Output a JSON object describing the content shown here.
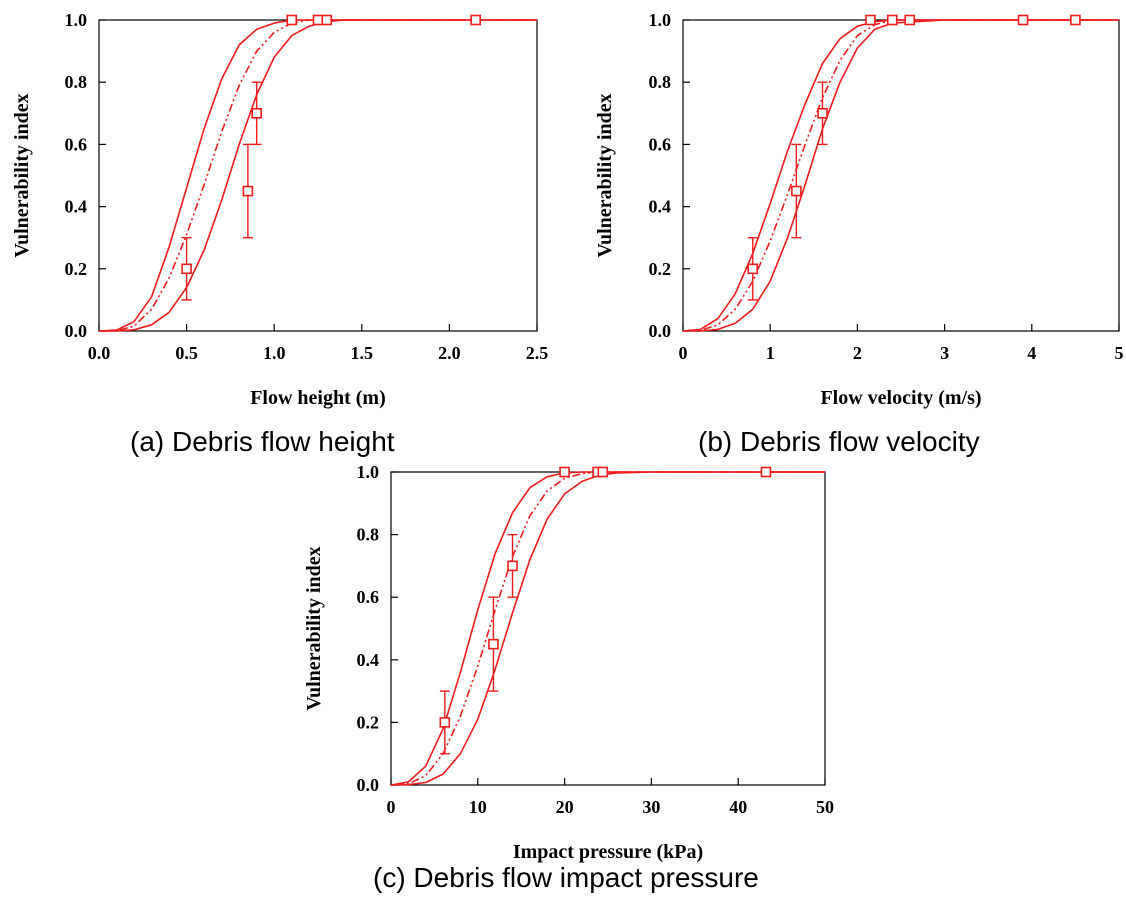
{
  "colors": {
    "curve": "#ee1c1c",
    "axis": "#000000",
    "text": "#000000"
  },
  "chart_data": [
    {
      "type": "scatter",
      "panel": "a",
      "caption": "(a) Debris flow height",
      "xlabel": "Flow height (m)",
      "ylabel": "Vulnerability index",
      "xlim": [
        0,
        2.5
      ],
      "ylim": [
        0,
        1.0
      ],
      "xticks": [
        0.0,
        0.5,
        1.0,
        1.5,
        2.0,
        2.5
      ],
      "xtick_labels": [
        "0.0",
        "0.5",
        "1.0",
        "1.5",
        "2.0",
        "2.5"
      ],
      "yticks": [
        0.0,
        0.2,
        0.4,
        0.6,
        0.8,
        1.0
      ],
      "ytick_labels": [
        "0.0",
        "0.2",
        "0.4",
        "0.6",
        "0.8",
        "1.0"
      ],
      "grid": false,
      "points": [
        {
          "x": 0.5,
          "y": 0.2,
          "err_low": 0.1,
          "err_high": 0.3
        },
        {
          "x": 0.85,
          "y": 0.45,
          "err_low": 0.3,
          "err_high": 0.6
        },
        {
          "x": 0.9,
          "y": 0.7,
          "err_low": 0.6,
          "err_high": 0.8
        },
        {
          "x": 1.1,
          "y": 1.0
        },
        {
          "x": 1.25,
          "y": 1.0
        },
        {
          "x": 1.3,
          "y": 1.0
        },
        {
          "x": 2.15,
          "y": 1.0
        }
      ],
      "curves": [
        {
          "style": "solid",
          "x": [
            0,
            0.1,
            0.2,
            0.3,
            0.4,
            0.5,
            0.6,
            0.7,
            0.8,
            0.9,
            1.0,
            1.1,
            1.2,
            1.3,
            1.4,
            1.5,
            2.5
          ],
          "y": [
            0,
            0.003,
            0.03,
            0.11,
            0.27,
            0.46,
            0.65,
            0.81,
            0.92,
            0.97,
            0.99,
            1.0,
            1.0,
            1.0,
            1.0,
            1.0,
            1.0
          ]
        },
        {
          "style": "dashdot",
          "x": [
            0,
            0.1,
            0.2,
            0.3,
            0.4,
            0.5,
            0.6,
            0.7,
            0.8,
            0.9,
            1.0,
            1.1,
            1.2,
            1.3,
            1.4,
            1.5,
            2.5
          ],
          "y": [
            0,
            0.001,
            0.015,
            0.07,
            0.17,
            0.31,
            0.47,
            0.64,
            0.79,
            0.9,
            0.96,
            0.99,
            1.0,
            1.0,
            1.0,
            1.0,
            1.0
          ]
        },
        {
          "style": "solid",
          "x": [
            0,
            0.1,
            0.2,
            0.3,
            0.4,
            0.5,
            0.6,
            0.7,
            0.8,
            0.9,
            1.0,
            1.1,
            1.2,
            1.3,
            1.4,
            1.5,
            2.5
          ],
          "y": [
            0,
            0.0,
            0.004,
            0.02,
            0.06,
            0.14,
            0.26,
            0.42,
            0.6,
            0.76,
            0.88,
            0.95,
            0.98,
            0.995,
            1.0,
            1.0,
            1.0
          ]
        }
      ]
    },
    {
      "type": "scatter",
      "panel": "b",
      "caption": "(b) Debris flow velocity",
      "xlabel": "Flow velocity (m/s)",
      "ylabel": "Vulnerability index",
      "xlim": [
        0,
        5
      ],
      "ylim": [
        0,
        1.0
      ],
      "xticks": [
        0,
        1,
        2,
        3,
        4,
        5
      ],
      "xtick_labels": [
        "0",
        "1",
        "2",
        "3",
        "4",
        "5"
      ],
      "yticks": [
        0.0,
        0.2,
        0.4,
        0.6,
        0.8,
        1.0
      ],
      "ytick_labels": [
        "0.0",
        "0.2",
        "0.4",
        "0.6",
        "0.8",
        "1.0"
      ],
      "grid": false,
      "points": [
        {
          "x": 0.8,
          "y": 0.2,
          "err_low": 0.1,
          "err_high": 0.3
        },
        {
          "x": 1.3,
          "y": 0.45,
          "err_low": 0.3,
          "err_high": 0.6
        },
        {
          "x": 1.6,
          "y": 0.7,
          "err_low": 0.6,
          "err_high": 0.8
        },
        {
          "x": 2.15,
          "y": 1.0
        },
        {
          "x": 2.4,
          "y": 1.0
        },
        {
          "x": 2.6,
          "y": 1.0
        },
        {
          "x": 3.9,
          "y": 1.0
        },
        {
          "x": 4.5,
          "y": 1.0
        }
      ],
      "curves": [
        {
          "style": "solid",
          "x": [
            0,
            0.2,
            0.4,
            0.6,
            0.8,
            1.0,
            1.2,
            1.4,
            1.6,
            1.8,
            2.0,
            2.2,
            2.4,
            3.0,
            5.0
          ],
          "y": [
            0,
            0.005,
            0.04,
            0.12,
            0.25,
            0.41,
            0.58,
            0.73,
            0.86,
            0.94,
            0.98,
            0.995,
            1.0,
            1.0,
            1.0
          ]
        },
        {
          "style": "dashdot",
          "x": [
            0,
            0.2,
            0.4,
            0.6,
            0.8,
            1.0,
            1.2,
            1.4,
            1.6,
            1.8,
            2.0,
            2.2,
            2.4,
            3.0,
            5.0
          ],
          "y": [
            0,
            0.002,
            0.02,
            0.07,
            0.16,
            0.29,
            0.44,
            0.6,
            0.75,
            0.87,
            0.95,
            0.985,
            1.0,
            1.0,
            1.0
          ]
        },
        {
          "style": "solid",
          "x": [
            0,
            0.2,
            0.4,
            0.6,
            0.8,
            1.0,
            1.2,
            1.4,
            1.6,
            1.8,
            2.0,
            2.2,
            2.4,
            3.0,
            5.0
          ],
          "y": [
            0,
            0.0,
            0.005,
            0.025,
            0.07,
            0.16,
            0.3,
            0.47,
            0.65,
            0.8,
            0.91,
            0.97,
            0.99,
            1.0,
            1.0
          ]
        }
      ]
    },
    {
      "type": "scatter",
      "panel": "c",
      "caption": "(c) Debris flow impact pressure",
      "xlabel": "Impact pressure (kPa)",
      "ylabel": "Vulnerability index",
      "xlim": [
        0,
        50
      ],
      "ylim": [
        0,
        1.0
      ],
      "xticks": [
        0,
        10,
        20,
        30,
        40,
        50
      ],
      "xtick_labels": [
        "0",
        "10",
        "20",
        "30",
        "40",
        "50"
      ],
      "yticks": [
        0.0,
        0.2,
        0.4,
        0.6,
        0.8,
        1.0
      ],
      "ytick_labels": [
        "0.0",
        "0.2",
        "0.4",
        "0.6",
        "0.8",
        "1.0"
      ],
      "grid": false,
      "points": [
        {
          "x": 6.2,
          "y": 0.2,
          "err_low": 0.1,
          "err_high": 0.3
        },
        {
          "x": 11.8,
          "y": 0.45,
          "err_low": 0.3,
          "err_high": 0.6
        },
        {
          "x": 14.0,
          "y": 0.7,
          "err_low": 0.6,
          "err_high": 0.8
        },
        {
          "x": 20.0,
          "y": 1.0
        },
        {
          "x": 23.8,
          "y": 1.0
        },
        {
          "x": 24.4,
          "y": 1.0
        },
        {
          "x": 43.2,
          "y": 1.0
        }
      ],
      "curves": [
        {
          "style": "solid",
          "x": [
            0,
            2,
            4,
            6,
            8,
            10,
            12,
            14,
            16,
            18,
            20,
            22,
            24,
            30,
            50
          ],
          "y": [
            0,
            0.01,
            0.06,
            0.18,
            0.36,
            0.56,
            0.74,
            0.87,
            0.95,
            0.985,
            0.997,
            1.0,
            1.0,
            1.0,
            1.0
          ]
        },
        {
          "style": "dashdot",
          "x": [
            0,
            2,
            4,
            6,
            8,
            10,
            12,
            14,
            16,
            18,
            20,
            22,
            24,
            30,
            50
          ],
          "y": [
            0,
            0.004,
            0.03,
            0.1,
            0.22,
            0.38,
            0.56,
            0.73,
            0.86,
            0.94,
            0.98,
            0.995,
            1.0,
            1.0,
            1.0
          ]
        },
        {
          "style": "solid",
          "x": [
            0,
            2,
            4,
            6,
            8,
            10,
            12,
            14,
            16,
            18,
            20,
            22,
            24,
            26,
            30,
            50
          ],
          "y": [
            0,
            0.001,
            0.008,
            0.035,
            0.1,
            0.21,
            0.37,
            0.55,
            0.72,
            0.85,
            0.93,
            0.97,
            0.99,
            0.997,
            1.0,
            1.0
          ]
        }
      ]
    }
  ]
}
